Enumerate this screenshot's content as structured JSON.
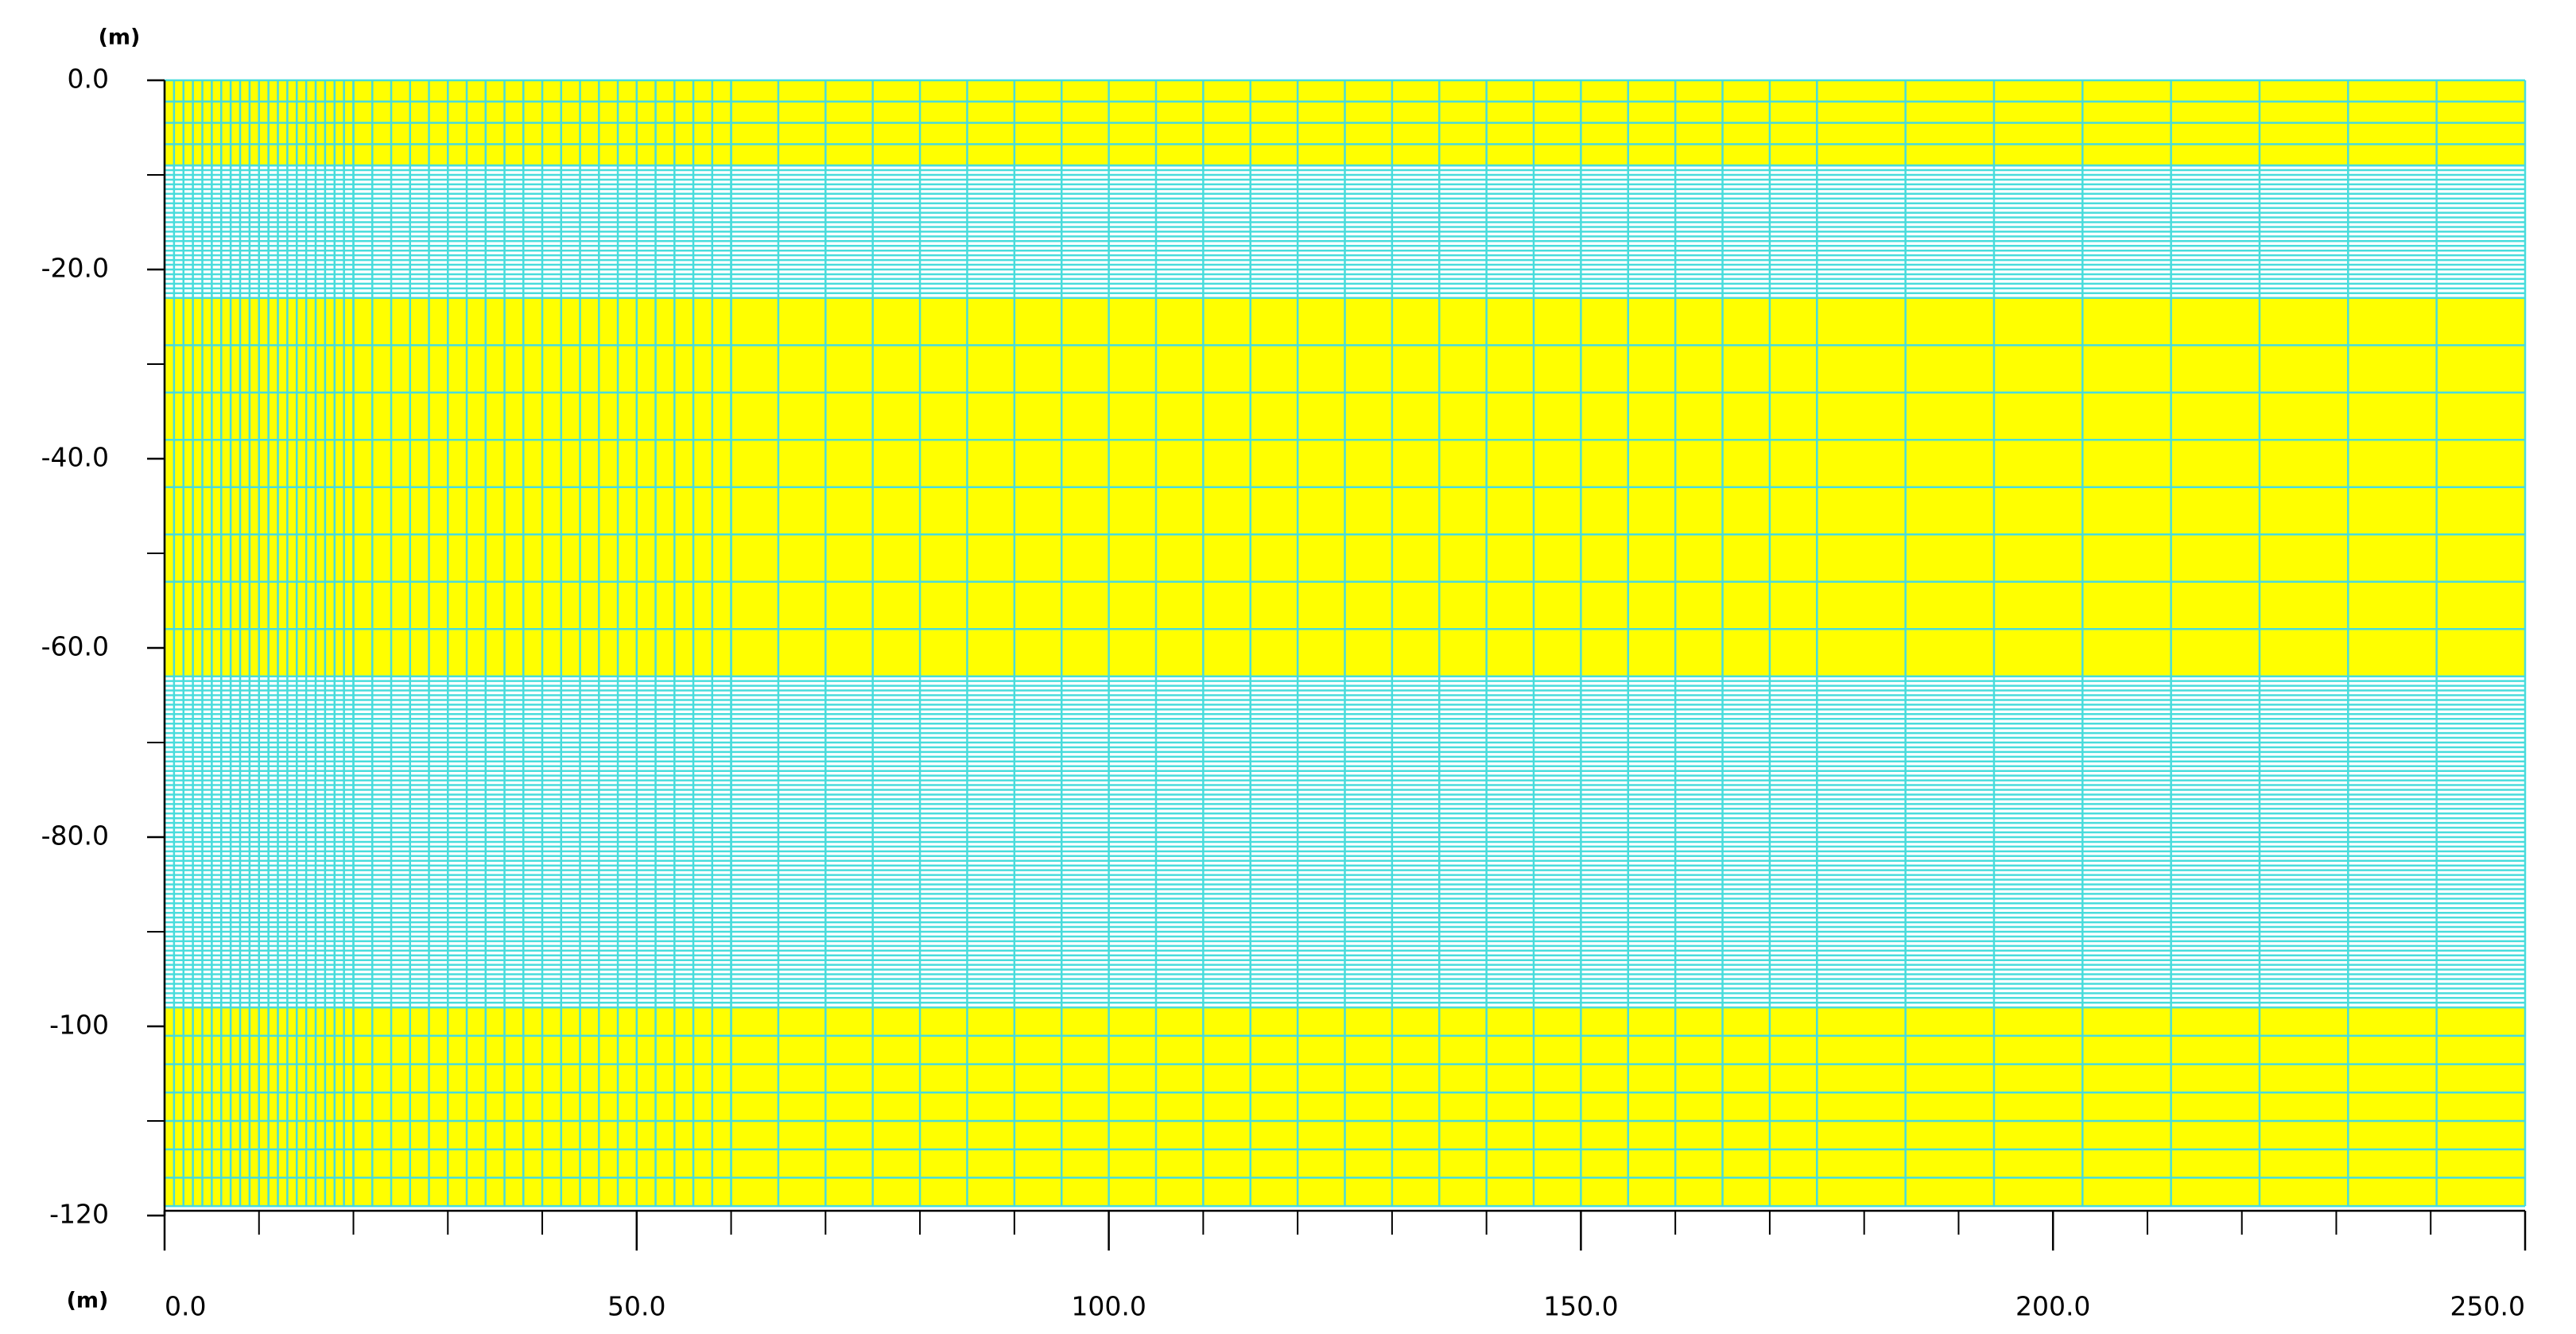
{
  "chart_data": {
    "type": "mesh",
    "x_unit_label": "(m)",
    "y_unit_label": "(m)",
    "xlim": [
      0,
      250
    ],
    "ylim": [
      -120,
      0
    ],
    "xticks": [
      {
        "value": 0,
        "label": "0.0"
      },
      {
        "value": 50,
        "label": "50.0"
      },
      {
        "value": 100,
        "label": "100.0"
      },
      {
        "value": 150,
        "label": "150.0"
      },
      {
        "value": 200,
        "label": "200.0"
      },
      {
        "value": 250,
        "label": "250.0"
      }
    ],
    "xminor_ticks": [
      10,
      20,
      30,
      40,
      60,
      70,
      80,
      90,
      110,
      120,
      130,
      140,
      160,
      170,
      180,
      190,
      210,
      220,
      230,
      240
    ],
    "yticks": [
      {
        "value": 0,
        "label": "0.0"
      },
      {
        "value": -20,
        "label": "-20.0"
      },
      {
        "value": -40,
        "label": "-40.0"
      },
      {
        "value": -60,
        "label": "-60.0"
      },
      {
        "value": -80,
        "label": "-80.0"
      },
      -100,
      -120
    ],
    "yminor_ticks": [
      -10,
      -30,
      -50,
      -70,
      -90,
      -110
    ],
    "mesh_color": "#48dcdc",
    "layers": [
      {
        "top": 0,
        "bottom": -9,
        "rows": 4,
        "color": "#ffff00"
      },
      {
        "top": -9,
        "bottom": -23,
        "rows": 28,
        "color": "#ffffff"
      },
      {
        "top": -23,
        "bottom": -63,
        "rows": 8,
        "color": "#ffff00"
      },
      {
        "top": -63,
        "bottom": -98,
        "rows": 70,
        "color": "#ffffff"
      },
      {
        "top": -98,
        "bottom": -119,
        "rows": 7,
        "color": "#ffff00"
      }
    ],
    "x_zones": [
      {
        "from": 0,
        "to": 20,
        "cells": 20
      },
      {
        "from": 20,
        "to": 60,
        "cells": 20
      },
      {
        "from": 60,
        "to": 175,
        "cells": 23
      },
      {
        "from": 175,
        "to": 250,
        "cells": 8
      }
    ]
  }
}
